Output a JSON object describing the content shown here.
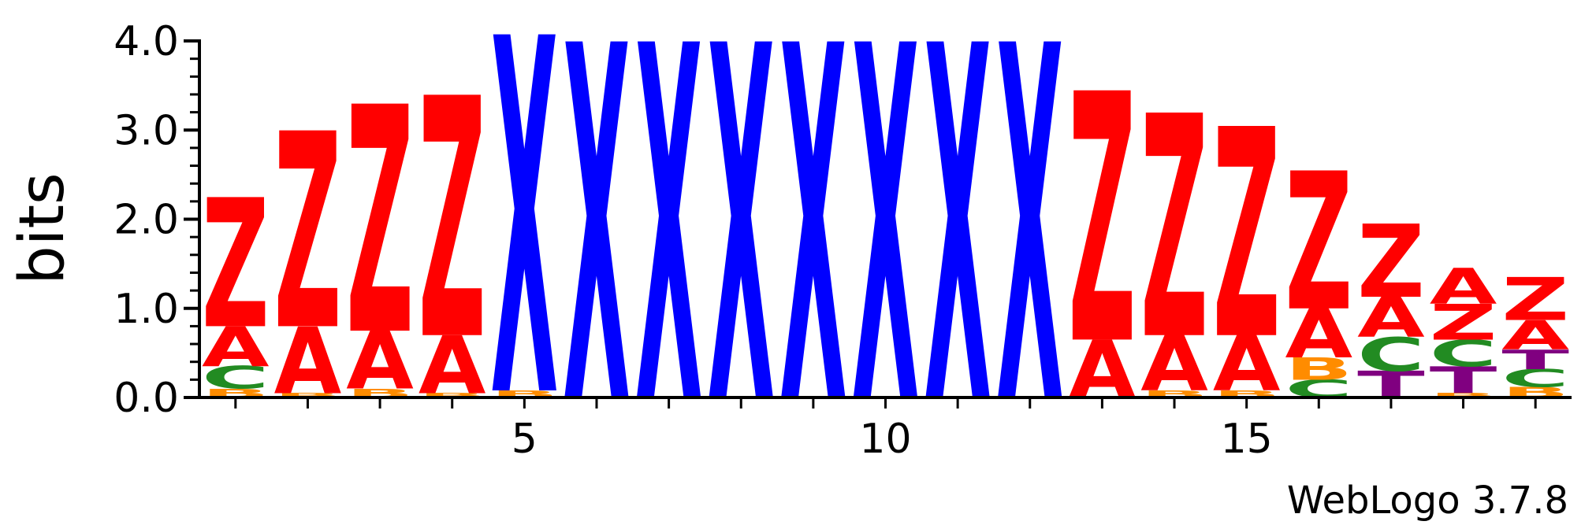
{
  "colors": {
    "A": "#ff0000",
    "Z": "#ff0000",
    "X": "#0000ff",
    "C": "#228b22",
    "B": "#ff8c00",
    "T": "#800080",
    "axis": "#000000",
    "background": "#ffffff"
  },
  "chart_data": {
    "type": "sequence-logo",
    "title": "",
    "xlabel": "",
    "ylabel": "bits",
    "ylim": [
      0,
      4.0
    ],
    "y_ticks": [
      "0.0",
      "1.0",
      "2.0",
      "3.0",
      "4.0"
    ],
    "x_ticks": [
      "5",
      "10",
      "15"
    ],
    "positions": [
      {
        "pos": 1,
        "stack": [
          {
            "letter": "B",
            "bits": 0.1
          },
          {
            "letter": "C",
            "bits": 0.25
          },
          {
            "letter": "A",
            "bits": 0.45
          },
          {
            "letter": "Z",
            "bits": 1.45
          }
        ]
      },
      {
        "pos": 2,
        "stack": [
          {
            "letter": "B",
            "bits": 0.05
          },
          {
            "letter": "A",
            "bits": 0.75
          },
          {
            "letter": "Z",
            "bits": 2.2
          }
        ]
      },
      {
        "pos": 3,
        "stack": [
          {
            "letter": "B",
            "bits": 0.1
          },
          {
            "letter": "A",
            "bits": 0.65
          },
          {
            "letter": "Z",
            "bits": 2.55
          }
        ]
      },
      {
        "pos": 4,
        "stack": [
          {
            "letter": "B",
            "bits": 0.05
          },
          {
            "letter": "A",
            "bits": 0.65
          },
          {
            "letter": "Z",
            "bits": 2.7
          }
        ]
      },
      {
        "pos": 5,
        "stack": [
          {
            "letter": "B",
            "bits": 0.08
          },
          {
            "letter": "X",
            "bits": 4.0
          }
        ]
      },
      {
        "pos": 6,
        "stack": [
          {
            "letter": "X",
            "bits": 4.0
          }
        ]
      },
      {
        "pos": 7,
        "stack": [
          {
            "letter": "X",
            "bits": 4.0
          }
        ]
      },
      {
        "pos": 8,
        "stack": [
          {
            "letter": "X",
            "bits": 4.0
          }
        ]
      },
      {
        "pos": 9,
        "stack": [
          {
            "letter": "X",
            "bits": 4.0
          }
        ]
      },
      {
        "pos": 10,
        "stack": [
          {
            "letter": "X",
            "bits": 4.0
          }
        ]
      },
      {
        "pos": 11,
        "stack": [
          {
            "letter": "X",
            "bits": 4.0
          }
        ]
      },
      {
        "pos": 12,
        "stack": [
          {
            "letter": "X",
            "bits": 4.0
          }
        ]
      },
      {
        "pos": 13,
        "stack": [
          {
            "letter": "A",
            "bits": 0.65
          },
          {
            "letter": "Z",
            "bits": 2.8
          }
        ]
      },
      {
        "pos": 14,
        "stack": [
          {
            "letter": "B",
            "bits": 0.08
          },
          {
            "letter": "A",
            "bits": 0.62
          },
          {
            "letter": "Z",
            "bits": 2.5
          }
        ]
      },
      {
        "pos": 15,
        "stack": [
          {
            "letter": "B",
            "bits": 0.08
          },
          {
            "letter": "A",
            "bits": 0.62
          },
          {
            "letter": "Z",
            "bits": 2.35
          }
        ]
      },
      {
        "pos": 16,
        "stack": [
          {
            "letter": "C",
            "bits": 0.2
          },
          {
            "letter": "B",
            "bits": 0.25
          },
          {
            "letter": "A",
            "bits": 0.55
          },
          {
            "letter": "Z",
            "bits": 1.55
          }
        ]
      },
      {
        "pos": 17,
        "stack": [
          {
            "letter": "T",
            "bits": 0.3
          },
          {
            "letter": "C",
            "bits": 0.38
          },
          {
            "letter": "A",
            "bits": 0.45
          },
          {
            "letter": "Z",
            "bits": 0.82
          }
        ]
      },
      {
        "pos": 18,
        "stack": [
          {
            "letter": "B",
            "bits": 0.05
          },
          {
            "letter": "T",
            "bits": 0.3
          },
          {
            "letter": "C",
            "bits": 0.3
          },
          {
            "letter": "Z",
            "bits": 0.4
          },
          {
            "letter": "A",
            "bits": 0.4
          }
        ]
      },
      {
        "pos": 19,
        "stack": [
          {
            "letter": "B",
            "bits": 0.12
          },
          {
            "letter": "C",
            "bits": 0.2
          },
          {
            "letter": "T",
            "bits": 0.22
          },
          {
            "letter": "A",
            "bits": 0.33
          },
          {
            "letter": "Z",
            "bits": 0.48
          }
        ]
      }
    ]
  },
  "credit": "WebLogo 3.7.8"
}
